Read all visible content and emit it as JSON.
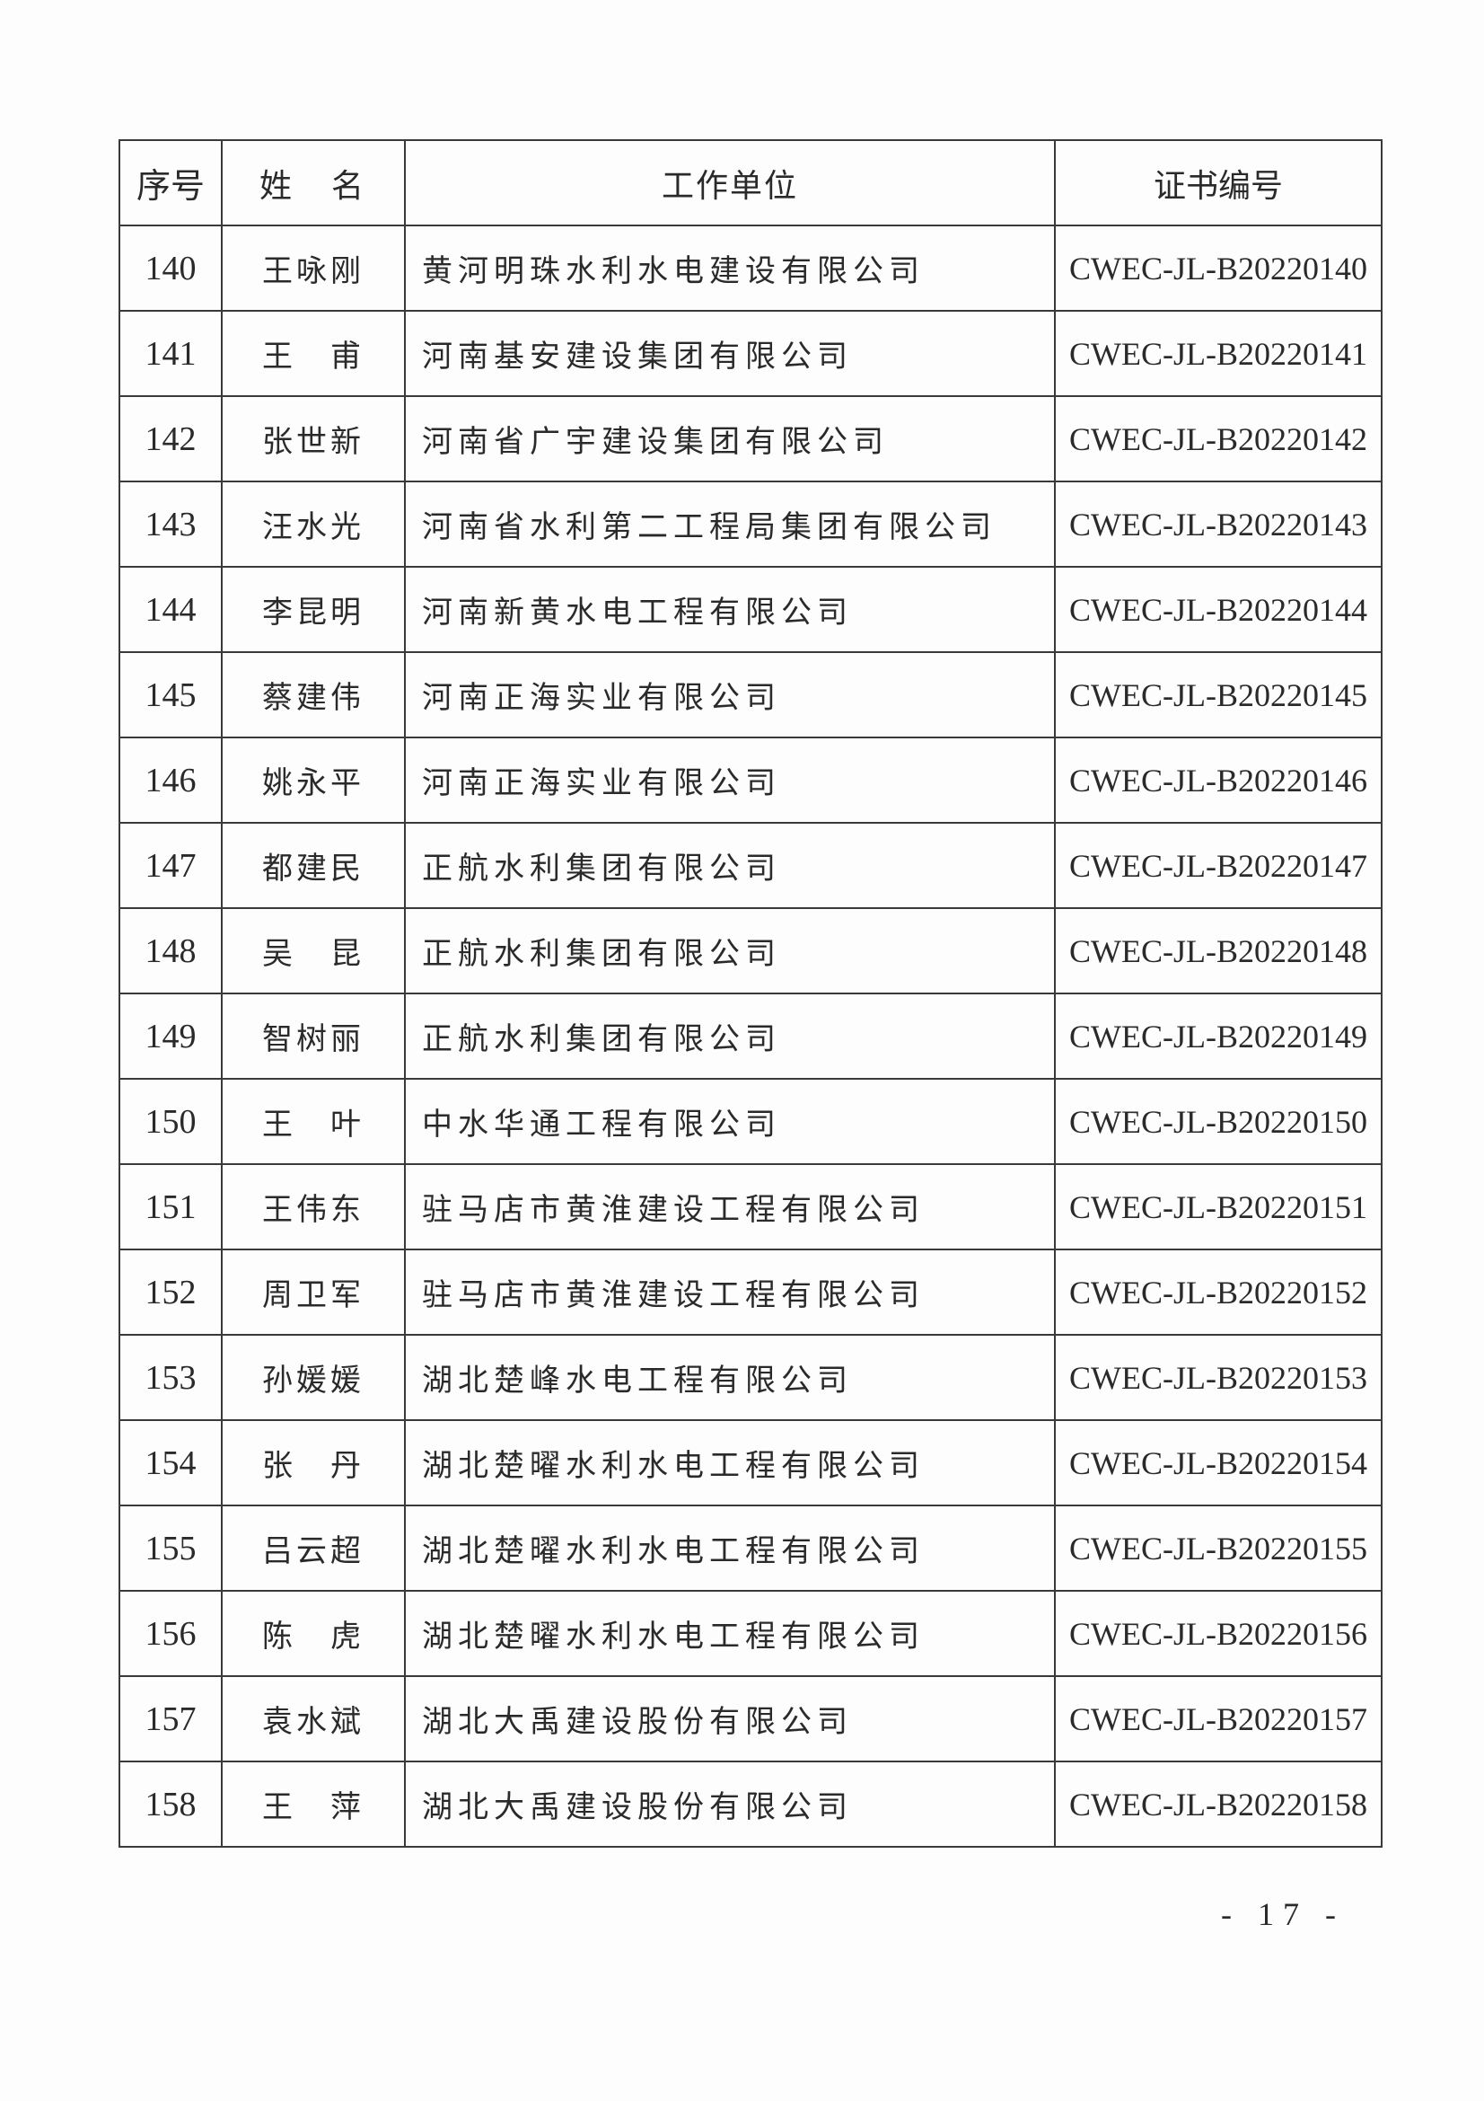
{
  "table": {
    "headers": [
      "序号",
      "姓　名",
      "工作单位",
      "证书编号"
    ],
    "rows": [
      {
        "no": "140",
        "name": "王咏刚",
        "unit": "黄河明珠水利水电建设有限公司",
        "cert": "CWEC-JL-B20220140"
      },
      {
        "no": "141",
        "name": "王　甫",
        "unit": "河南基安建设集团有限公司",
        "cert": "CWEC-JL-B20220141"
      },
      {
        "no": "142",
        "name": "张世新",
        "unit": "河南省广宇建设集团有限公司",
        "cert": "CWEC-JL-B20220142"
      },
      {
        "no": "143",
        "name": "汪水光",
        "unit": "河南省水利第二工程局集团有限公司",
        "cert": "CWEC-JL-B20220143"
      },
      {
        "no": "144",
        "name": "李昆明",
        "unit": "河南新黄水电工程有限公司",
        "cert": "CWEC-JL-B20220144"
      },
      {
        "no": "145",
        "name": "蔡建伟",
        "unit": "河南正海实业有限公司",
        "cert": "CWEC-JL-B20220145"
      },
      {
        "no": "146",
        "name": "姚永平",
        "unit": "河南正海实业有限公司",
        "cert": "CWEC-JL-B20220146"
      },
      {
        "no": "147",
        "name": "都建民",
        "unit": "正航水利集团有限公司",
        "cert": "CWEC-JL-B20220147"
      },
      {
        "no": "148",
        "name": "吴　昆",
        "unit": "正航水利集团有限公司",
        "cert": "CWEC-JL-B20220148"
      },
      {
        "no": "149",
        "name": "智树丽",
        "unit": "正航水利集团有限公司",
        "cert": "CWEC-JL-B20220149"
      },
      {
        "no": "150",
        "name": "王　叶",
        "unit": "中水华通工程有限公司",
        "cert": "CWEC-JL-B20220150"
      },
      {
        "no": "151",
        "name": "王伟东",
        "unit": "驻马店市黄淮建设工程有限公司",
        "cert": "CWEC-JL-B20220151"
      },
      {
        "no": "152",
        "name": "周卫军",
        "unit": "驻马店市黄淮建设工程有限公司",
        "cert": "CWEC-JL-B20220152"
      },
      {
        "no": "153",
        "name": "孙媛媛",
        "unit": "湖北楚峰水电工程有限公司",
        "cert": "CWEC-JL-B20220153"
      },
      {
        "no": "154",
        "name": "张　丹",
        "unit": "湖北楚曜水利水电工程有限公司",
        "cert": "CWEC-JL-B20220154"
      },
      {
        "no": "155",
        "name": "吕云超",
        "unit": "湖北楚曜水利水电工程有限公司",
        "cert": "CWEC-JL-B20220155"
      },
      {
        "no": "156",
        "name": "陈　虎",
        "unit": "湖北楚曜水利水电工程有限公司",
        "cert": "CWEC-JL-B20220156"
      },
      {
        "no": "157",
        "name": "袁水斌",
        "unit": "湖北大禹建设股份有限公司",
        "cert": "CWEC-JL-B20220157"
      },
      {
        "no": "158",
        "name": "王　萍",
        "unit": "湖北大禹建设股份有限公司",
        "cert": "CWEC-JL-B20220158"
      }
    ]
  },
  "footer": {
    "page_number": "- 17 -"
  }
}
